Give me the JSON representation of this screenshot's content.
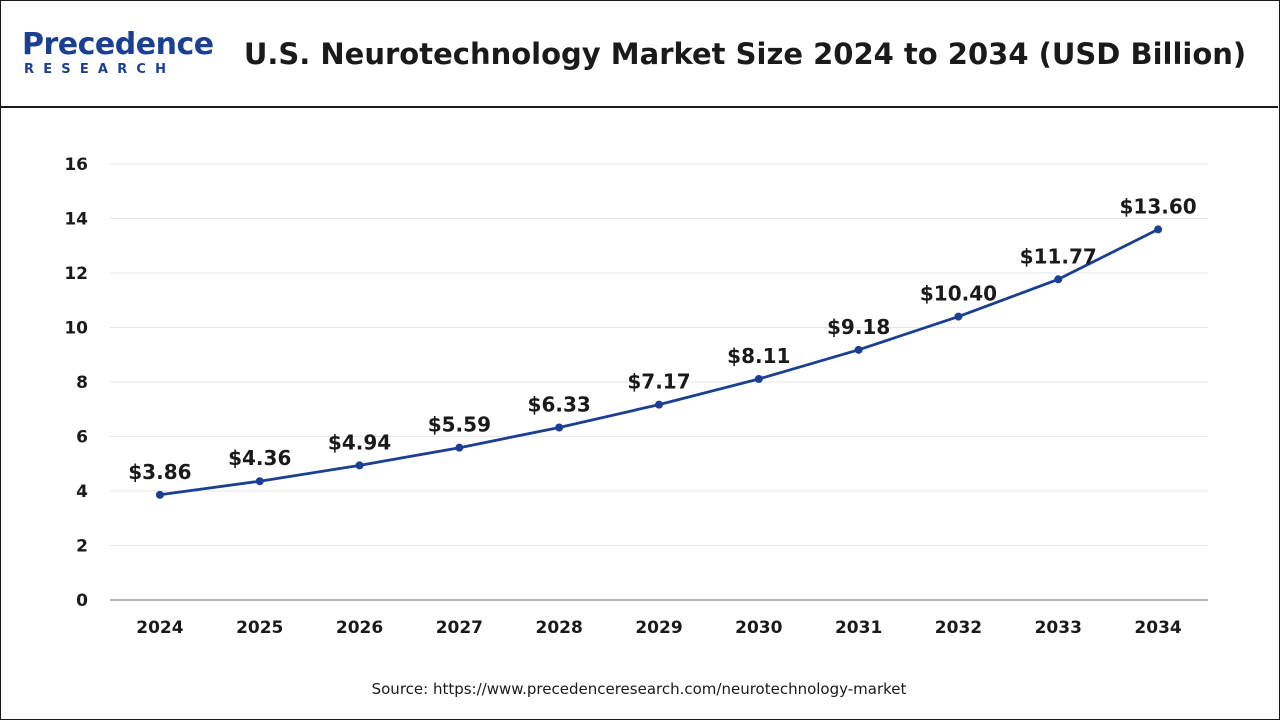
{
  "header": {
    "logo_top": "Precedence",
    "logo_bottom": "RESEARCH",
    "title": "U.S. Neurotechnology Market Size 2024 to 2034 (USD Billion)"
  },
  "footer": {
    "source": "Source: https://www.precedenceresearch.com/neurotechnology-market"
  },
  "colors": {
    "brand": "#1b3f93",
    "line": "#1b3f93",
    "grid": "#e6e6e6",
    "axis": "#9a9a9a",
    "text": "#1a1a1a"
  },
  "chart_data": {
    "type": "line",
    "title": "U.S. Neurotechnology Market Size 2024 to 2034 (USD Billion)",
    "xlabel": "",
    "ylabel": "",
    "categories": [
      "2024",
      "2025",
      "2026",
      "2027",
      "2028",
      "2029",
      "2030",
      "2031",
      "2032",
      "2033",
      "2034"
    ],
    "series": [
      {
        "values": [
          3.86,
          4.36,
          4.94,
          5.59,
          6.33,
          7.17,
          8.11,
          9.18,
          10.4,
          11.77,
          13.6
        ],
        "labels": [
          "$3.86",
          "$4.36",
          "$4.94",
          "$5.59",
          "$6.33",
          "$7.17",
          "$8.11",
          "$9.18",
          "$10.40",
          "$11.77",
          "$13.60"
        ]
      }
    ],
    "ylim": [
      0,
      16
    ],
    "yticks": [
      "0",
      "2",
      "4",
      "6",
      "8",
      "10",
      "12",
      "14",
      "16"
    ],
    "grid": true,
    "legend": "none"
  }
}
